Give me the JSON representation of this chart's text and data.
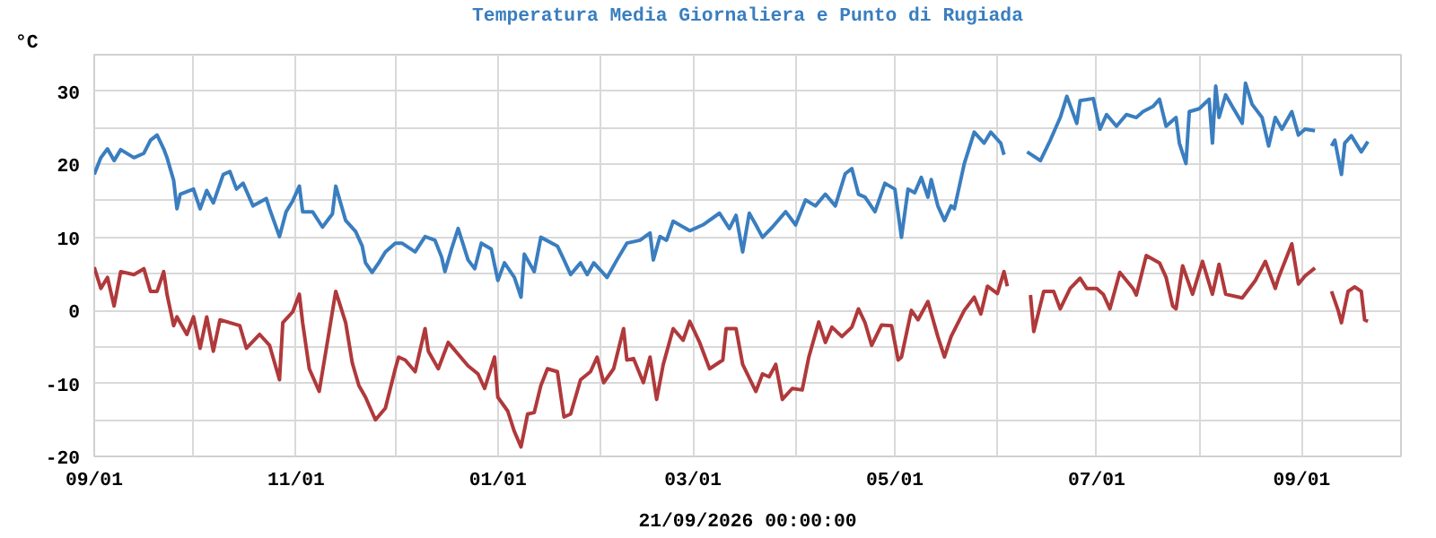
{
  "chart_data": {
    "type": "line",
    "title": "Temperatura Media Giornaliera e Punto di Rugiada",
    "ylabel": "°C",
    "xlabel": "21/09/2026 00:00:00",
    "xlim": [
      "2025-09-01",
      "2026-10-01"
    ],
    "xticks": [
      {
        "value": "2025-09-01",
        "label": "09/01"
      },
      {
        "value": "2025-10-01",
        "label": null
      },
      {
        "value": "2025-11-01",
        "label": "11/01"
      },
      {
        "value": "2025-12-01",
        "label": null
      },
      {
        "value": "2026-01-01",
        "label": "01/01"
      },
      {
        "value": "2026-02-01",
        "label": null
      },
      {
        "value": "2026-03-01",
        "label": "03/01"
      },
      {
        "value": "2026-04-01",
        "label": null
      },
      {
        "value": "2026-05-01",
        "label": "05/01"
      },
      {
        "value": "2026-06-01",
        "label": null
      },
      {
        "value": "2026-07-01",
        "label": "07/01"
      },
      {
        "value": "2026-08-01",
        "label": null
      },
      {
        "value": "2026-09-01",
        "label": "09/01"
      },
      {
        "value": "2026-10-01",
        "label": null
      }
    ],
    "ylim": [
      -20,
      35
    ],
    "yticks": [
      -20,
      {
        "value": -15,
        "label": null
      },
      -10,
      {
        "value": -5,
        "label": null
      },
      0,
      {
        "value": 5,
        "label": null
      },
      10,
      {
        "value": 15,
        "label": null
      },
      20,
      {
        "value": 25,
        "label": null
      },
      30,
      {
        "value": 35,
        "label": null
      }
    ],
    "grid": true,
    "marker": "none",
    "line_style": "solid",
    "series": [
      {
        "color": "#3a7ebf",
        "x": [
          "2025-09-01",
          "2025-09-03",
          "2025-09-05",
          "2025-09-07",
          "2025-09-09",
          "2025-09-13",
          "2025-09-16",
          "2025-09-18",
          "2025-09-20",
          "2025-09-22",
          "2025-09-23",
          "2025-09-25",
          "2025-09-26",
          "2025-09-27",
          "2025-10-01",
          "2025-10-03",
          "2025-10-05",
          "2025-10-07",
          "2025-10-10",
          "2025-10-12",
          "2025-10-14",
          "2025-10-16",
          "2025-10-19",
          "2025-10-23",
          "2025-10-24",
          "2025-10-27",
          "2025-10-29",
          "2025-10-31",
          "2025-11-02",
          "2025-11-03",
          "2025-11-06",
          "2025-11-09",
          "2025-11-12",
          "2025-11-13",
          "2025-11-16",
          "2025-11-19",
          "2025-11-21",
          "2025-11-22",
          "2025-11-24",
          "2025-11-26",
          "2025-11-28",
          "2025-12-01",
          "2025-12-03",
          "2025-12-07",
          "2025-12-10",
          "2025-12-13",
          "2025-12-15",
          "2025-12-16",
          "2025-12-18",
          "2025-12-20",
          "2025-12-23",
          "2025-12-25",
          "2025-12-27",
          "2025-12-30",
          "2026-01-01",
          "2026-01-03",
          "2026-01-06",
          "2026-01-08",
          "2026-01-09",
          "2026-01-12",
          "2026-01-14",
          "2026-01-19",
          "2026-01-21",
          "2026-01-23",
          "2026-01-26",
          "2026-01-28",
          "2026-01-30",
          "2026-02-03",
          "2026-02-06",
          "2026-02-09",
          "2026-02-13",
          "2026-02-16",
          "2026-02-17",
          "2026-02-19",
          "2026-02-21",
          "2026-02-23",
          "2026-02-28",
          "2026-03-04",
          "2026-03-09",
          "2026-03-12",
          "2026-03-14",
          "2026-03-16",
          "2026-03-18",
          "2026-03-20",
          "2026-03-22",
          "2026-03-25",
          "2026-03-29",
          "2026-04-01",
          "2026-04-04",
          "2026-04-07",
          "2026-04-10",
          "2026-04-13",
          "2026-04-16",
          "2026-04-18",
          "2026-04-20",
          "2026-04-22",
          "2026-04-25",
          "2026-04-28",
          "2026-05-01",
          "2026-05-03",
          "2026-05-05",
          "2026-05-07",
          "2026-05-09",
          "2026-05-11",
          "2026-05-12",
          "2026-05-14",
          "2026-05-16",
          "2026-05-18",
          "2026-05-19",
          "2026-05-22",
          "2026-05-25",
          "2026-05-28",
          "2026-05-30",
          "2026-06-02",
          "2026-06-03",
          "2026-06-06",
          "2026-06-10",
          "2026-06-14",
          "2026-06-17",
          "2026-06-20",
          "2026-06-22",
          "2026-06-25",
          "2026-06-26",
          "2026-06-30",
          "2026-07-02",
          "2026-07-04",
          "2026-07-07",
          "2026-07-10",
          "2026-07-13",
          "2026-07-15",
          "2026-07-18",
          "2026-07-20",
          "2026-07-22",
          "2026-07-25",
          "2026-07-26",
          "2026-07-28",
          "2026-07-29",
          "2026-08-01",
          "2026-08-04",
          "2026-08-05",
          "2026-08-06",
          "2026-08-07",
          "2026-08-09",
          "2026-08-11",
          "2026-08-14",
          "2026-08-15",
          "2026-08-17",
          "2026-08-20",
          "2026-08-22",
          "2026-08-24",
          "2026-08-26",
          "2026-08-29",
          "2026-08-31",
          "2026-09-02",
          "2026-09-05",
          "2026-09-07",
          "2026-09-10",
          "2026-09-11",
          "2026-09-13",
          "2026-09-14",
          "2026-09-16",
          "2026-09-19",
          "2026-09-21"
        ],
        "values": [
          18.6,
          20.9,
          22.1,
          20.5,
          22.0,
          20.9,
          21.5,
          23.3,
          24.0,
          22.1,
          20.9,
          17.8,
          13.9,
          15.9,
          16.6,
          13.9,
          16.4,
          14.7,
          18.6,
          19.0,
          16.6,
          17.4,
          14.3,
          15.3,
          13.9,
          10.1,
          13.5,
          15.0,
          17.0,
          13.5,
          13.5,
          11.4,
          13.2,
          17.0,
          12.3,
          10.8,
          8.8,
          6.5,
          5.2,
          6.5,
          8.0,
          9.2,
          9.2,
          8.0,
          10.1,
          9.6,
          7.3,
          5.3,
          8.4,
          11.2,
          6.9,
          5.7,
          9.2,
          8.4,
          4.1,
          6.5,
          4.5,
          1.8,
          7.7,
          5.3,
          10.0,
          8.8,
          6.9,
          4.9,
          6.5,
          4.9,
          6.5,
          4.5,
          6.9,
          9.2,
          9.6,
          10.6,
          6.9,
          10.1,
          9.6,
          12.2,
          10.9,
          11.7,
          13.3,
          11.2,
          13.0,
          8.0,
          13.3,
          11.7,
          10.0,
          11.4,
          13.5,
          11.7,
          15.1,
          14.3,
          15.9,
          14.3,
          18.7,
          19.4,
          15.9,
          15.5,
          13.5,
          17.4,
          16.6,
          10.0,
          16.6,
          16.1,
          18.2,
          15.5,
          17.9,
          14.3,
          12.3,
          14.3,
          13.9,
          20.1,
          24.4,
          22.9,
          24.4,
          22.9,
          21.3,
          null,
          21.7,
          20.5,
          23.3,
          26.4,
          29.3,
          25.6,
          28.7,
          29.0,
          24.8,
          26.8,
          25.2,
          26.8,
          26.4,
          27.2,
          27.9,
          28.9,
          25.2,
          26.4,
          22.9,
          20.1,
          27.2,
          27.6,
          28.9,
          22.9,
          30.7,
          26.4,
          29.5,
          27.9,
          25.6,
          31.1,
          28.2,
          26.4,
          22.5,
          26.4,
          24.8,
          27.2,
          24.0,
          24.8,
          24.6,
          null,
          22.5,
          23.3,
          18.6,
          22.9,
          23.9,
          21.7,
          23.1
        ]
      },
      {
        "color": "#b0393b",
        "x": [
          "2025-09-01",
          "2025-09-03",
          "2025-09-05",
          "2025-09-07",
          "2025-09-09",
          "2025-09-13",
          "2025-09-16",
          "2025-09-18",
          "2025-09-20",
          "2025-09-22",
          "2025-09-23",
          "2025-09-25",
          "2025-09-26",
          "2025-09-27",
          "2025-09-29",
          "2025-10-01",
          "2025-10-03",
          "2025-10-05",
          "2025-10-07",
          "2025-10-09",
          "2025-10-12",
          "2025-10-15",
          "2025-10-17",
          "2025-10-21",
          "2025-10-24",
          "2025-10-27",
          "2025-10-28",
          "2025-10-31",
          "2025-11-02",
          "2025-11-03",
          "2025-11-05",
          "2025-11-08",
          "2025-11-11",
          "2025-11-13",
          "2025-11-16",
          "2025-11-18",
          "2025-11-20",
          "2025-11-22",
          "2025-11-25",
          "2025-11-28",
          "2025-12-01",
          "2025-12-02",
          "2025-12-04",
          "2025-12-07",
          "2025-12-10",
          "2025-12-11",
          "2025-12-14",
          "2025-12-17",
          "2025-12-20",
          "2025-12-23",
          "2025-12-26",
          "2025-12-28",
          "2025-12-31",
          "2026-01-01",
          "2026-01-04",
          "2026-01-06",
          "2026-01-08",
          "2026-01-10",
          "2026-01-12",
          "2026-01-14",
          "2026-01-16",
          "2026-01-19",
          "2026-01-21",
          "2026-01-23",
          "2026-01-26",
          "2026-01-29",
          "2026-01-31",
          "2026-02-02",
          "2026-02-05",
          "2026-02-08",
          "2026-02-09",
          "2026-02-11",
          "2026-02-14",
          "2026-02-16",
          "2026-02-18",
          "2026-02-20",
          "2026-02-23",
          "2026-02-26",
          "2026-02-28",
          "2026-03-03",
          "2026-03-06",
          "2026-03-10",
          "2026-03-11",
          "2026-03-14",
          "2026-03-16",
          "2026-03-20",
          "2026-03-22",
          "2026-03-24",
          "2026-03-26",
          "2026-03-28",
          "2026-03-31",
          "2026-04-03",
          "2026-04-05",
          "2026-04-08",
          "2026-04-10",
          "2026-04-12",
          "2026-04-15",
          "2026-04-18",
          "2026-04-20",
          "2026-04-22",
          "2026-04-24",
          "2026-04-27",
          "2026-04-30",
          "2026-05-02",
          "2026-05-03",
          "2026-05-06",
          "2026-05-08",
          "2026-05-11",
          "2026-05-14",
          "2026-05-16",
          "2026-05-18",
          "2026-05-22",
          "2026-05-25",
          "2026-05-27",
          "2026-05-29",
          "2026-06-01",
          "2026-06-03",
          "2026-06-04",
          "2026-06-07",
          "2026-06-11",
          "2026-06-12",
          "2026-06-15",
          "2026-06-18",
          "2026-06-20",
          "2026-06-23",
          "2026-06-26",
          "2026-06-28",
          "2026-07-01",
          "2026-07-03",
          "2026-07-05",
          "2026-07-08",
          "2026-07-12",
          "2026-07-13",
          "2026-07-16",
          "2026-07-20",
          "2026-07-22",
          "2026-07-24",
          "2026-07-25",
          "2026-07-27",
          "2026-07-30",
          "2026-08-02",
          "2026-08-05",
          "2026-08-07",
          "2026-08-09",
          "2026-08-14",
          "2026-08-18",
          "2026-08-21",
          "2026-08-24",
          "2026-08-25",
          "2026-08-29",
          "2026-08-31",
          "2026-09-02",
          "2026-09-05",
          "2026-09-07",
          "2026-09-10",
          "2026-09-12",
          "2026-09-13",
          "2026-09-15",
          "2026-09-17",
          "2026-09-19",
          "2026-09-20",
          "2026-09-21"
        ],
        "values": [
          5.9,
          3.0,
          4.5,
          0.6,
          5.3,
          4.9,
          5.7,
          2.6,
          2.6,
          5.3,
          2.2,
          -2.1,
          -0.9,
          -1.7,
          -3.3,
          -0.9,
          -5.2,
          -0.9,
          -5.6,
          -1.3,
          -1.7,
          -2.1,
          -5.2,
          -3.3,
          -4.8,
          -9.5,
          -1.7,
          -0.2,
          2.2,
          -1.7,
          -8.0,
          -11.1,
          -2.9,
          2.6,
          -1.7,
          -7.2,
          -10.3,
          -11.9,
          -15.0,
          -13.4,
          -8.0,
          -6.4,
          -6.8,
          -8.4,
          -2.5,
          -5.6,
          -8.0,
          -4.4,
          -6.0,
          -7.6,
          -8.7,
          -10.7,
          -6.4,
          -11.9,
          -13.8,
          -16.6,
          -18.7,
          -14.2,
          -14.0,
          -10.3,
          -8.0,
          -8.4,
          -14.6,
          -14.2,
          -9.5,
          -8.4,
          -6.4,
          -9.9,
          -8.0,
          -2.5,
          -6.8,
          -6.6,
          -9.9,
          -6.4,
          -12.2,
          -7.4,
          -2.5,
          -4.1,
          -1.5,
          -4.4,
          -8.0,
          -6.8,
          -2.5,
          -2.5,
          -7.4,
          -11.1,
          -8.7,
          -9.1,
          -7.4,
          -12.2,
          -10.7,
          -10.9,
          -6.4,
          -1.6,
          -4.4,
          -2.3,
          -3.6,
          -2.3,
          0.2,
          -1.7,
          -4.8,
          -2.0,
          -2.1,
          -6.8,
          -6.4,
          0.0,
          -1.3,
          1.2,
          -3.6,
          -6.4,
          -3.6,
          0.0,
          1.8,
          -0.5,
          3.3,
          2.3,
          5.3,
          3.3,
          null,
          2.1,
          -2.9,
          2.6,
          2.6,
          0.2,
          3.0,
          4.4,
          3.0,
          3.0,
          2.2,
          0.2,
          5.2,
          3.0,
          2.1,
          7.5,
          6.5,
          4.5,
          0.6,
          0.2,
          6.1,
          2.2,
          6.7,
          2.2,
          6.3,
          2.2,
          1.7,
          4.1,
          6.7,
          3.0,
          4.5,
          9.1,
          3.6,
          4.7,
          5.8,
          null,
          2.6,
          0.0,
          -1.7,
          2.6,
          3.2,
          2.6,
          -1.3,
          -1.5
        ]
      }
    ]
  }
}
